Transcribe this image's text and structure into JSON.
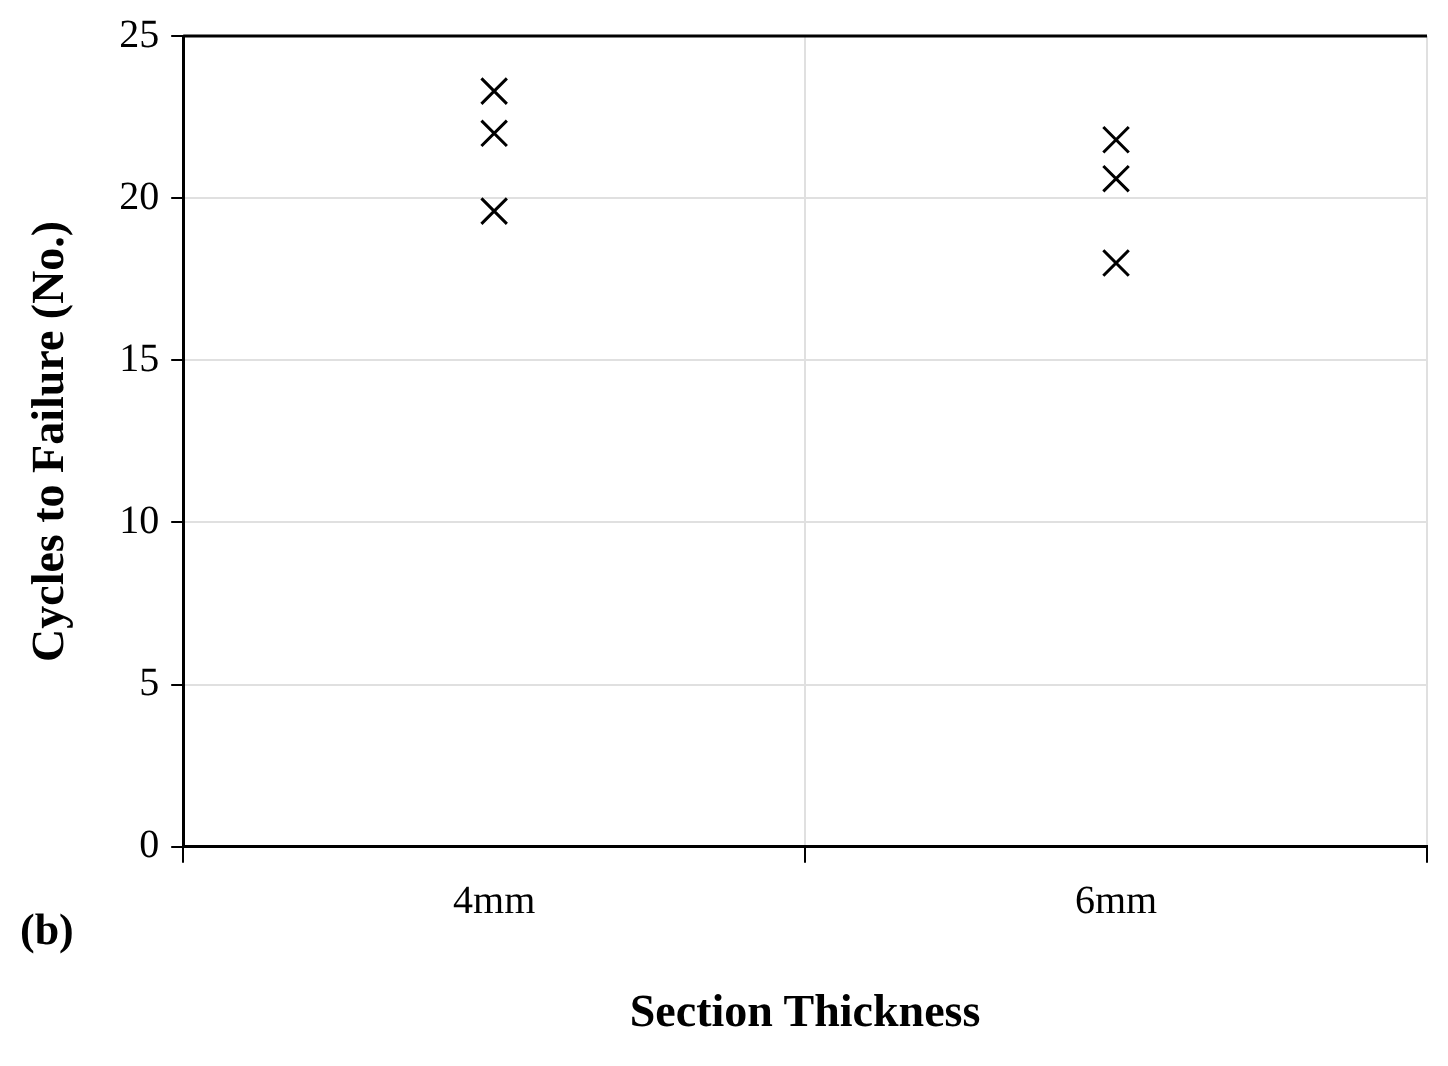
{
  "chart_data": {
    "type": "scatter",
    "xlabel": "Section Thickness",
    "ylabel": "Cycles to Failure (No.)",
    "annotations": [
      "(b)"
    ],
    "categories": [
      "4mm",
      "6mm"
    ],
    "series": [
      {
        "color": "#000000",
        "values": [
          23.3,
          21.8
        ]
      },
      {
        "color": "#000000",
        "values": [
          22,
          20.6
        ]
      },
      {
        "color": "#000000",
        "values": [
          19.6,
          18
        ]
      }
    ],
    "ylim": [
      0,
      25
    ],
    "yticks": [
      0,
      5,
      10,
      15,
      20,
      25
    ],
    "grid": true,
    "legend": false,
    "marker": "cross"
  }
}
